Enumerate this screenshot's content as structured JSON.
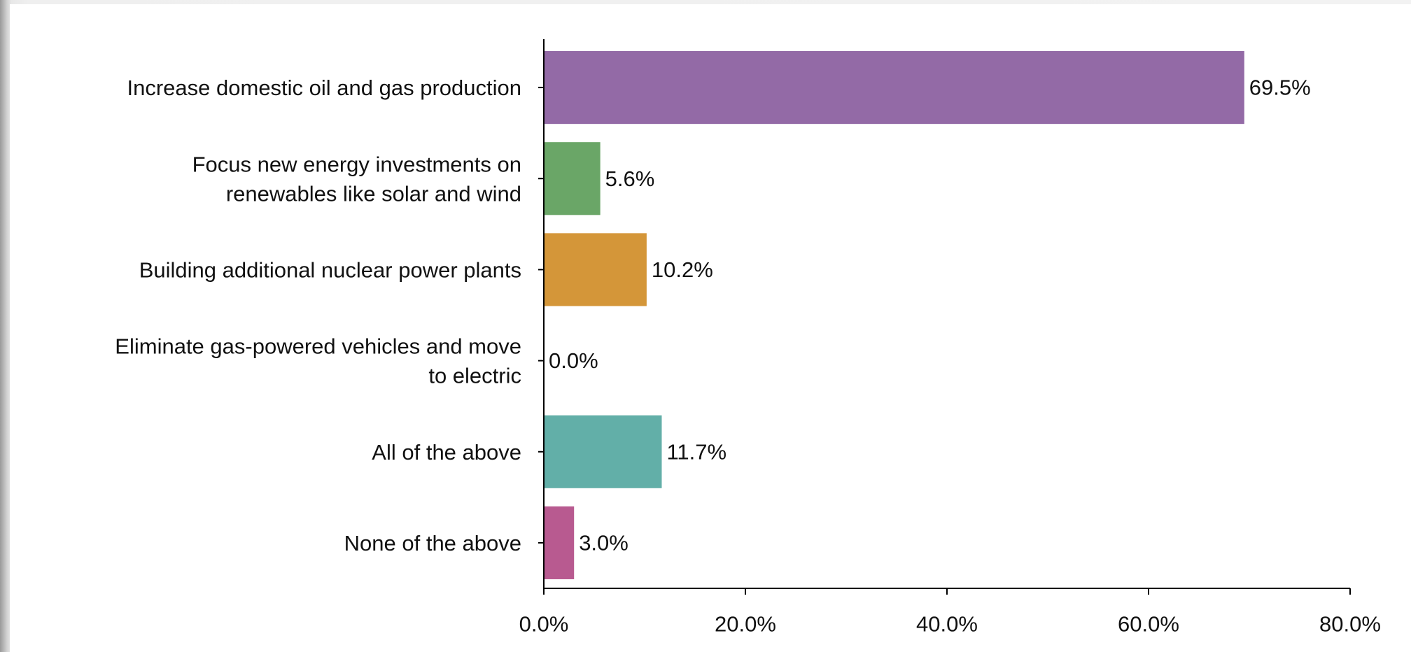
{
  "chart_data": {
    "type": "bar",
    "orientation": "horizontal",
    "title": "",
    "xlabel": "",
    "ylabel": "",
    "xlim": [
      0,
      80
    ],
    "grid": false,
    "categories": [
      [
        "Increase domestic oil and gas production"
      ],
      [
        "Focus new energy investments on",
        "renewables like solar and wind"
      ],
      [
        "Building additional nuclear power plants"
      ],
      [
        "Eliminate gas-powered vehicles and move",
        "to electric"
      ],
      [
        "All of the above"
      ],
      [
        "None of the above"
      ]
    ],
    "values": [
      69.5,
      5.6,
      10.2,
      0.0,
      11.7,
      3.0
    ],
    "value_labels": [
      "69.5%",
      "5.6%",
      "10.2%",
      "0.0%",
      "11.7%",
      "3.0%"
    ],
    "colors": [
      "#936aa6",
      "#6aa667",
      "#d49639",
      "#936aa6",
      "#62afa8",
      "#b85a90"
    ],
    "x_ticks": [
      0,
      20,
      40,
      60,
      80
    ],
    "x_tick_labels": [
      "0.0%",
      "20.0%",
      "40.0%",
      "60.0%",
      "80.0%"
    ]
  }
}
